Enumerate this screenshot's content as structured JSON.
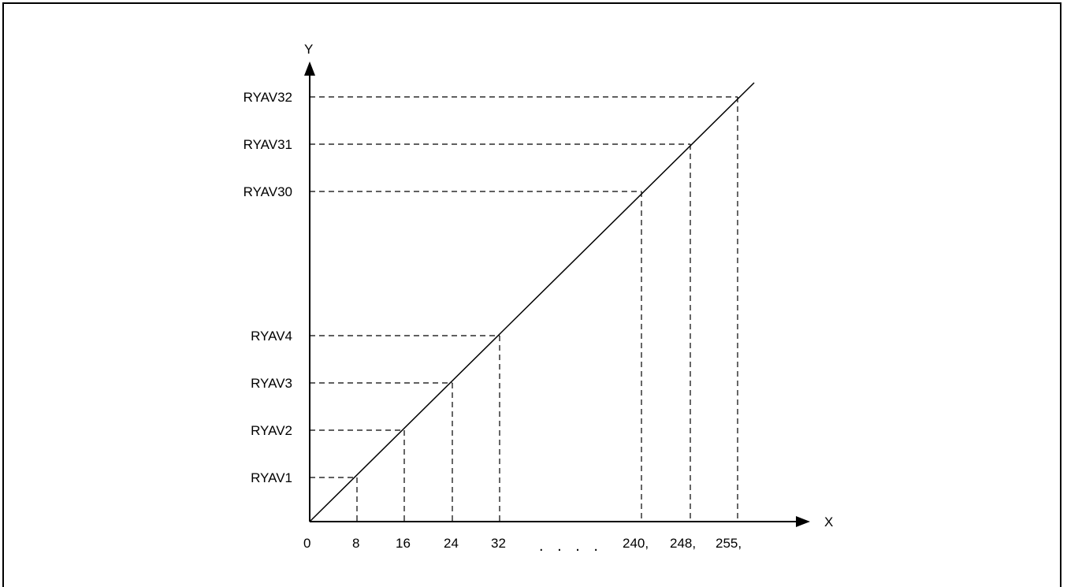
{
  "diagram": {
    "x_axis_label": "X",
    "y_axis_label": "Y",
    "origin_label": "0",
    "ellipsis": ". . . .",
    "points": [
      {
        "x_label": "8",
        "y_label": "RYAV1"
      },
      {
        "x_label": "16",
        "y_label": "RYAV2"
      },
      {
        "x_label": "24",
        "y_label": "RYAV3"
      },
      {
        "x_label": "32",
        "y_label": "RYAV4"
      },
      {
        "x_label": "240,",
        "y_label": "RYAV30"
      },
      {
        "x_label": "248,",
        "y_label": "RYAV31"
      },
      {
        "x_label": "255,",
        "y_label": "RYAV32"
      }
    ]
  }
}
